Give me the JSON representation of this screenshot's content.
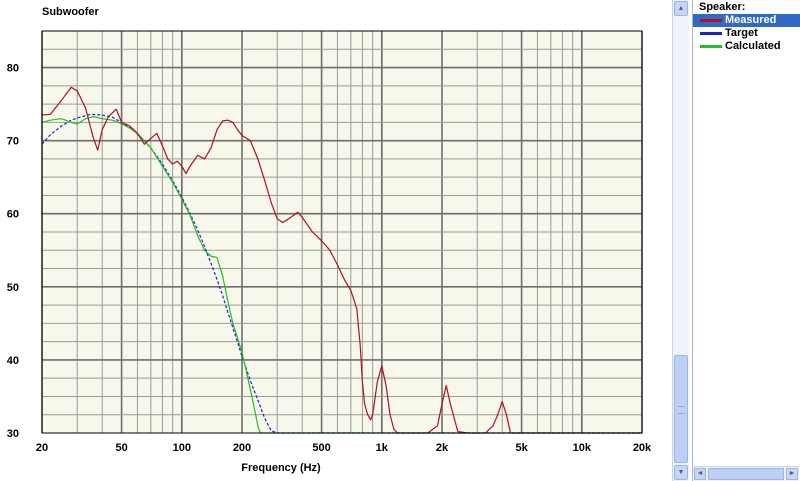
{
  "chart_data": {
    "type": "line",
    "title": "Subwoofer",
    "xlabel": "Frequency (Hz)",
    "ylabel": "",
    "xscale": "log",
    "xlim": [
      20,
      20000
    ],
    "ylim": [
      30,
      85
    ],
    "grid": true,
    "legend_placement": "right panel",
    "xticks": [
      {
        "v": 20,
        "label": "20"
      },
      {
        "v": 50,
        "label": "50"
      },
      {
        "v": 100,
        "label": "100"
      },
      {
        "v": 200,
        "label": "200"
      },
      {
        "v": 500,
        "label": "500"
      },
      {
        "v": 1000,
        "label": "1k"
      },
      {
        "v": 2000,
        "label": "2k"
      },
      {
        "v": 5000,
        "label": "5k"
      },
      {
        "v": 10000,
        "label": "10k"
      },
      {
        "v": 20000,
        "label": "20k"
      }
    ],
    "yticks": [
      {
        "v": 30,
        "label": "30"
      },
      {
        "v": 40,
        "label": "40"
      },
      {
        "v": 50,
        "label": "50"
      },
      {
        "v": 60,
        "label": "60"
      },
      {
        "v": 70,
        "label": "70"
      },
      {
        "v": 80,
        "label": "80"
      }
    ],
    "series": [
      {
        "name": "Measured",
        "color": "#b01020",
        "style": "solid",
        "x": [
          20,
          22,
          25,
          28,
          30,
          33,
          36,
          38,
          40,
          43,
          47,
          50,
          55,
          60,
          65,
          70,
          75,
          80,
          85,
          90,
          95,
          100,
          105,
          110,
          120,
          130,
          140,
          150,
          160,
          170,
          180,
          190,
          200,
          220,
          240,
          260,
          280,
          300,
          320,
          350,
          380,
          400,
          450,
          500,
          550,
          600,
          650,
          700,
          720,
          750,
          780,
          800,
          820,
          850,
          880,
          900,
          950,
          1000,
          1050,
          1100,
          1150,
          1200,
          1300,
          1500,
          1700,
          1900,
          2000,
          2100,
          2200,
          2400,
          2700,
          3000,
          3300,
          3600,
          3800,
          4000,
          4200,
          4400,
          5000,
          7000,
          10000,
          15000,
          20000
        ],
        "y": [
          73.5,
          73.6,
          75.5,
          77.3,
          76.8,
          74.5,
          70.5,
          68.7,
          71.5,
          73.3,
          74.3,
          72.5,
          72.0,
          71.0,
          69.5,
          70.3,
          71.0,
          69.3,
          67.5,
          66.8,
          67.2,
          66.5,
          65.5,
          66.5,
          68.0,
          67.5,
          69.0,
          71.5,
          72.7,
          72.8,
          72.5,
          71.5,
          70.7,
          70.0,
          67.5,
          64.5,
          61.5,
          59.3,
          58.8,
          59.5,
          60.2,
          59.5,
          57.5,
          56.3,
          55.0,
          53.0,
          51.0,
          49.5,
          48.5,
          47.0,
          42.0,
          37.0,
          34.0,
          32.5,
          31.8,
          32.5,
          37.0,
          39.2,
          36.5,
          32.5,
          30.5,
          30.0,
          30.0,
          30.0,
          30.0,
          31.0,
          34.0,
          36.5,
          34.0,
          30.2,
          30.0,
          30.0,
          30.0,
          31.0,
          32.5,
          34.3,
          32.5,
          30.0,
          30.0,
          30.0,
          30.0,
          30.0,
          30.0
        ]
      },
      {
        "name": "Target",
        "color": "#1a22c8",
        "style": "dashed",
        "x": [
          20,
          22,
          25,
          28,
          30,
          35,
          40,
          45,
          50,
          55,
          60,
          70,
          80,
          90,
          100,
          110,
          120,
          130,
          140,
          150,
          160,
          170,
          180,
          190,
          200,
          220,
          240,
          260,
          280,
          300,
          20000
        ],
        "y": [
          69.5,
          70.8,
          72.0,
          72.8,
          73.1,
          73.6,
          73.5,
          73.2,
          72.5,
          71.8,
          70.9,
          69.0,
          66.8,
          64.5,
          62.3,
          60.0,
          57.8,
          55.5,
          53.2,
          51.0,
          48.8,
          46.5,
          44.4,
          42.4,
          40.5,
          37.2,
          34.5,
          32.0,
          30.3,
          30.0,
          30.0
        ]
      },
      {
        "name": "Calculated",
        "color": "#20c020",
        "style": "solid",
        "x": [
          20,
          22,
          25,
          28,
          30,
          33,
          36,
          40,
          45,
          50,
          55,
          60,
          70,
          80,
          90,
          100,
          110,
          120,
          130,
          140,
          150,
          160,
          170,
          180,
          190,
          200,
          210,
          220,
          230,
          240,
          245,
          250,
          260,
          280,
          20000
        ],
        "y": [
          72.5,
          72.8,
          73.0,
          72.5,
          72.3,
          73.0,
          73.3,
          73.0,
          72.8,
          72.3,
          71.7,
          71.0,
          69.0,
          66.5,
          64.3,
          62.0,
          59.8,
          57.0,
          55.0,
          54.2,
          54.0,
          51.5,
          48.0,
          45.0,
          43.0,
          41.0,
          38.5,
          36.0,
          33.5,
          31.0,
          30.2,
          30.0,
          30.0,
          30.0,
          30.0
        ]
      }
    ]
  },
  "legend": {
    "title": "Speaker:",
    "items": [
      {
        "label": "Measured",
        "color": "#b01020",
        "selected": true
      },
      {
        "label": "Target",
        "color": "#1a22c8",
        "selected": false
      },
      {
        "label": "Calculated",
        "color": "#20c020",
        "selected": false
      }
    ]
  },
  "scroll_glyphs": {
    "up": "▲",
    "down": "▼",
    "left": "◄",
    "right": "►"
  }
}
